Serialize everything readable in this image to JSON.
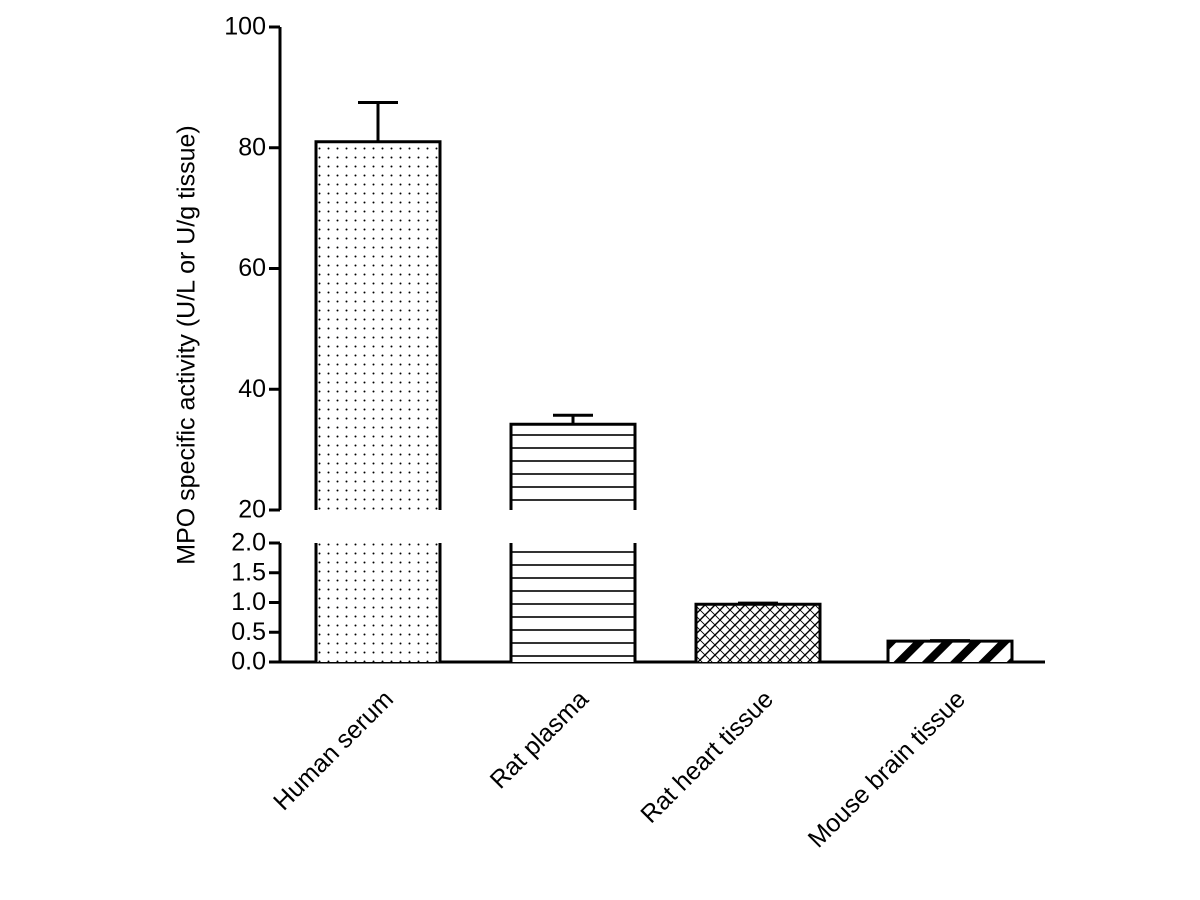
{
  "chart_data": {
    "type": "bar",
    "ylabel": "MPO specific activity (U/L or U/g tissue)",
    "categories": [
      "Human serum",
      "Rat plasma",
      "Rat heart tissue",
      "Mouse brain tissue"
    ],
    "values": [
      81,
      34.2,
      0.97,
      0.35
    ],
    "errors": [
      6.5,
      1.5,
      0.02,
      0.01
    ],
    "patterns": [
      "dots",
      "horizontal-lines",
      "crosshatch",
      "diagonal-stripes"
    ],
    "color": "#000000",
    "ylim_lower": [
      0,
      2
    ],
    "yticks_lower": [
      {
        "value": 0,
        "label": "0.0"
      },
      0.5,
      {
        "value": 1,
        "label": "1.0"
      },
      1.5,
      {
        "value": 2,
        "label": "2.0"
      }
    ],
    "ylim_upper": [
      20,
      100
    ],
    "yticks_upper": [
      20,
      40,
      60,
      80,
      100
    ]
  }
}
